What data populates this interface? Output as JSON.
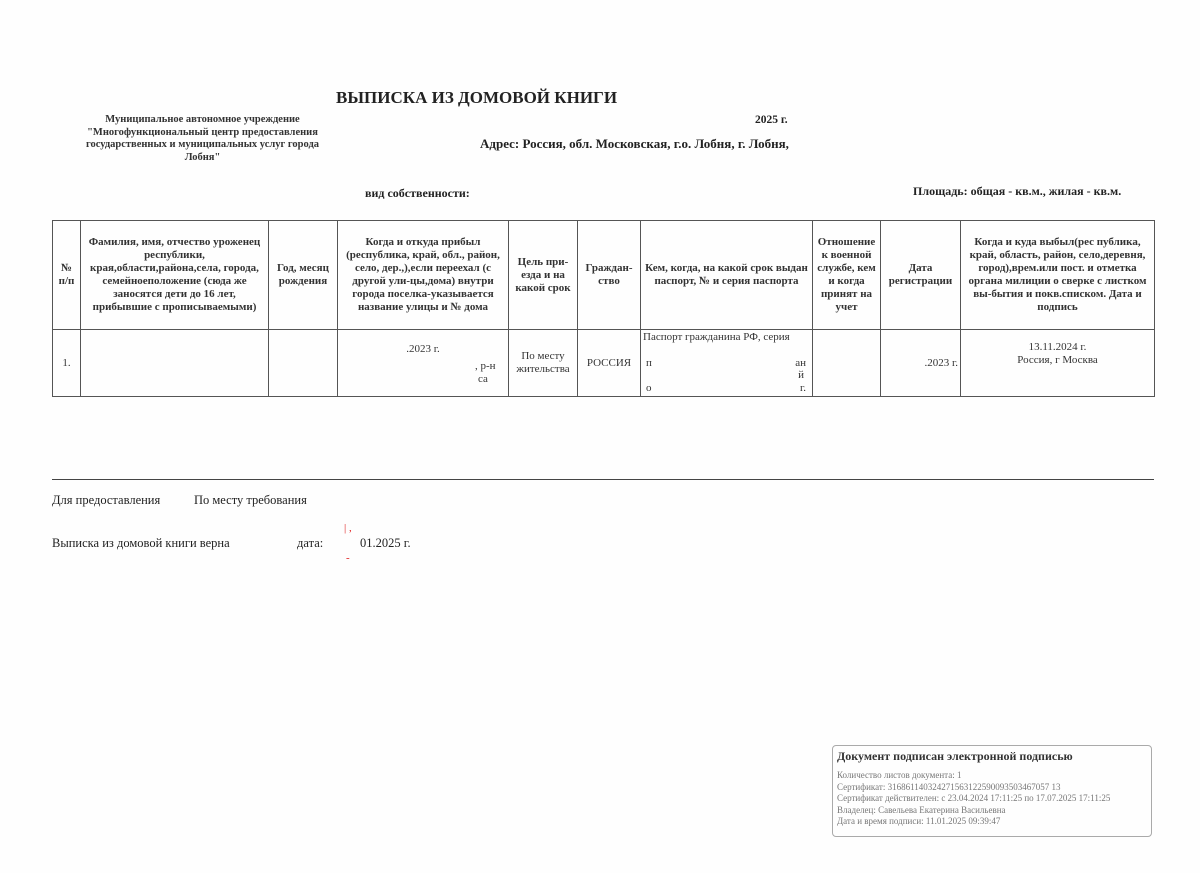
{
  "title": "ВЫПИСКА ИЗ ДОМОВОЙ КНИГИ",
  "organization": "Муниципальное автономное учреждение \"Многофункциональный центр предоставления государственных и муниципальных услуг города Лобня\"",
  "year": "2025 г.",
  "address": "Адрес: Россия, обл. Московская, г.о. Лобня, г. Лобня,",
  "ownership": "вид собственности:",
  "area": "Площадь: общая -  кв.м., жилая -  кв.м.",
  "table": {
    "headers": [
      "№ п/п",
      "Фамилия, имя, отчество уроженец республики, края,области,района,села, города, семейноеположение (сюда же заносятся дети до 16 лет, прибывшие с прописываемыми)",
      "Год, месяц рождения",
      "Когда и откуда прибыл (республика, край, обл., район, село, дер.,),если переехал (с другой ули-цы,дома) внутри города поселка-указывается название улицы и № дома",
      "Цель при-езда и на какой срок",
      "Граждан-ство",
      "Кем, когда, на какой срок выдан паспорт, № и серия паспорта",
      "Отношение к военной службе, кем и когда принят на учет",
      "Дата регистрации",
      "Когда и куда выбыл(рес публика, край, область, район, село,деревня, город),врем.или пост. и отметка органа милиции о сверке с листком вы-бытия и покв.списком. Дата и подпись"
    ],
    "rows": [
      {
        "num": "1.",
        "name": "",
        "birth": "",
        "arrived": ".2023 г.",
        "arrived_frag1": ", р-н",
        "arrived_frag2": "са",
        "purpose": "По месту жительства",
        "citizenship": "РОССИЯ",
        "passport": "Паспорт гражданина РФ, серия",
        "passport_frag1": "п",
        "passport_frag2": "ан",
        "passport_frag3": "й",
        "passport_frag4": "о",
        "passport_frag5": "г.",
        "military": "",
        "registered": ".2023 г.",
        "departed_date": "13.11.2024 г.",
        "departed_place": "Россия,  г Москва"
      }
    ]
  },
  "footer": {
    "purpose_label": "Для предоставления",
    "purpose_value": "По месту требования",
    "verified_label": "Выписка из домовой книги верна",
    "date_label": "дата:",
    "date_value": "01.2025 г."
  },
  "signature": {
    "heading": "Документ подписан электронной подписью",
    "lines": [
      "Количество листов документа: 1",
      "Сертификат: 316861140324271563122590093503467057 13",
      "Сертификат действителен: с 23.04.2024 17:11:25 по 17.07.2025 17:11:25",
      "Владелец: Савельева Екатерина Васильевна",
      "Дата и время подписи: 11.01.2025 09:39:47"
    ]
  }
}
